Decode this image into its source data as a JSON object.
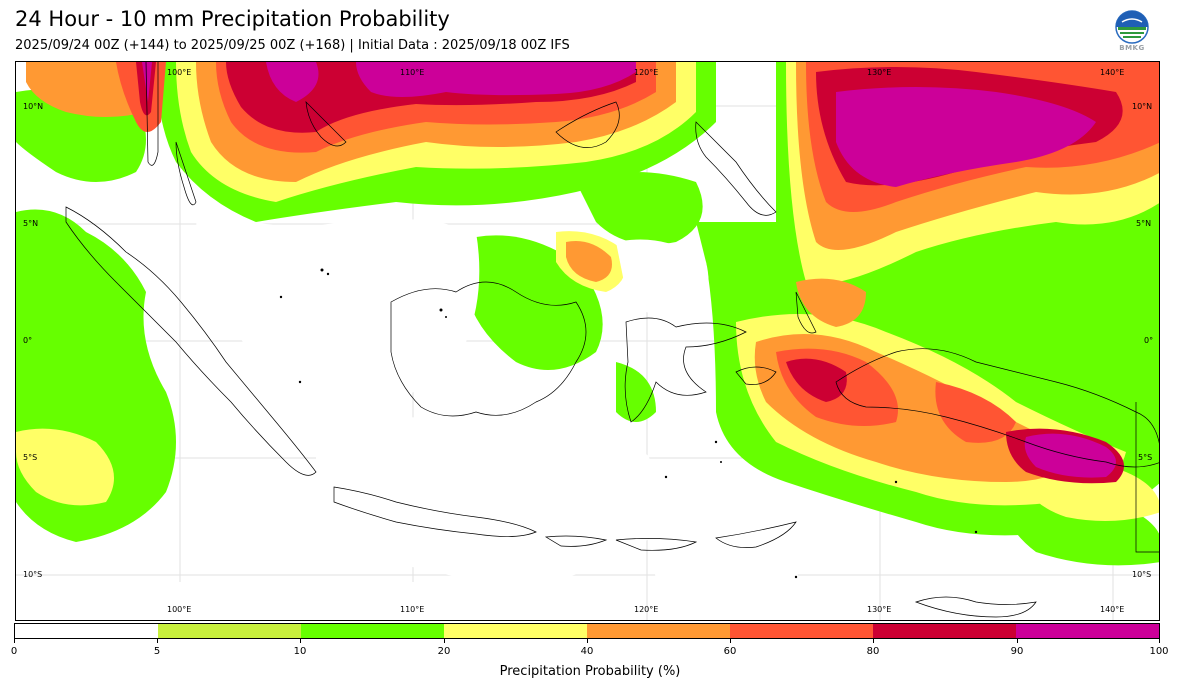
{
  "header": {
    "title": "24 Hour - 10 mm Precipitation Probability",
    "subtitle": "2025/09/24 00Z (+144) to 2025/09/25 00Z (+168) | Initial Data : 2025/09/18 00Z IFS",
    "logo_text": "BMKG"
  },
  "map": {
    "lon_labels": [
      "100°E",
      "110°E",
      "120°E",
      "130°E",
      "140°E"
    ],
    "lat_labels": [
      "10°N",
      "5°N",
      "0°",
      "5°S",
      "10°S"
    ],
    "level_colors": {
      "5-10": "#c8f03c",
      "10-20": "#66ff00",
      "20-40": "#ffff66",
      "40-60": "#ff9933",
      "60-80": "#ff5533",
      "80-90": "#cc0033",
      "90-100": "#cc0099"
    }
  },
  "colorbar": {
    "label": "Precipitation Probability (%)",
    "ticks": [
      "0",
      "5",
      "10",
      "20",
      "40",
      "60",
      "80",
      "90",
      "100"
    ],
    "colors": [
      "#ffffff",
      "#c8f03c",
      "#66ff00",
      "#ffff66",
      "#ff9933",
      "#ff5533",
      "#cc0033",
      "#cc0099"
    ]
  }
}
